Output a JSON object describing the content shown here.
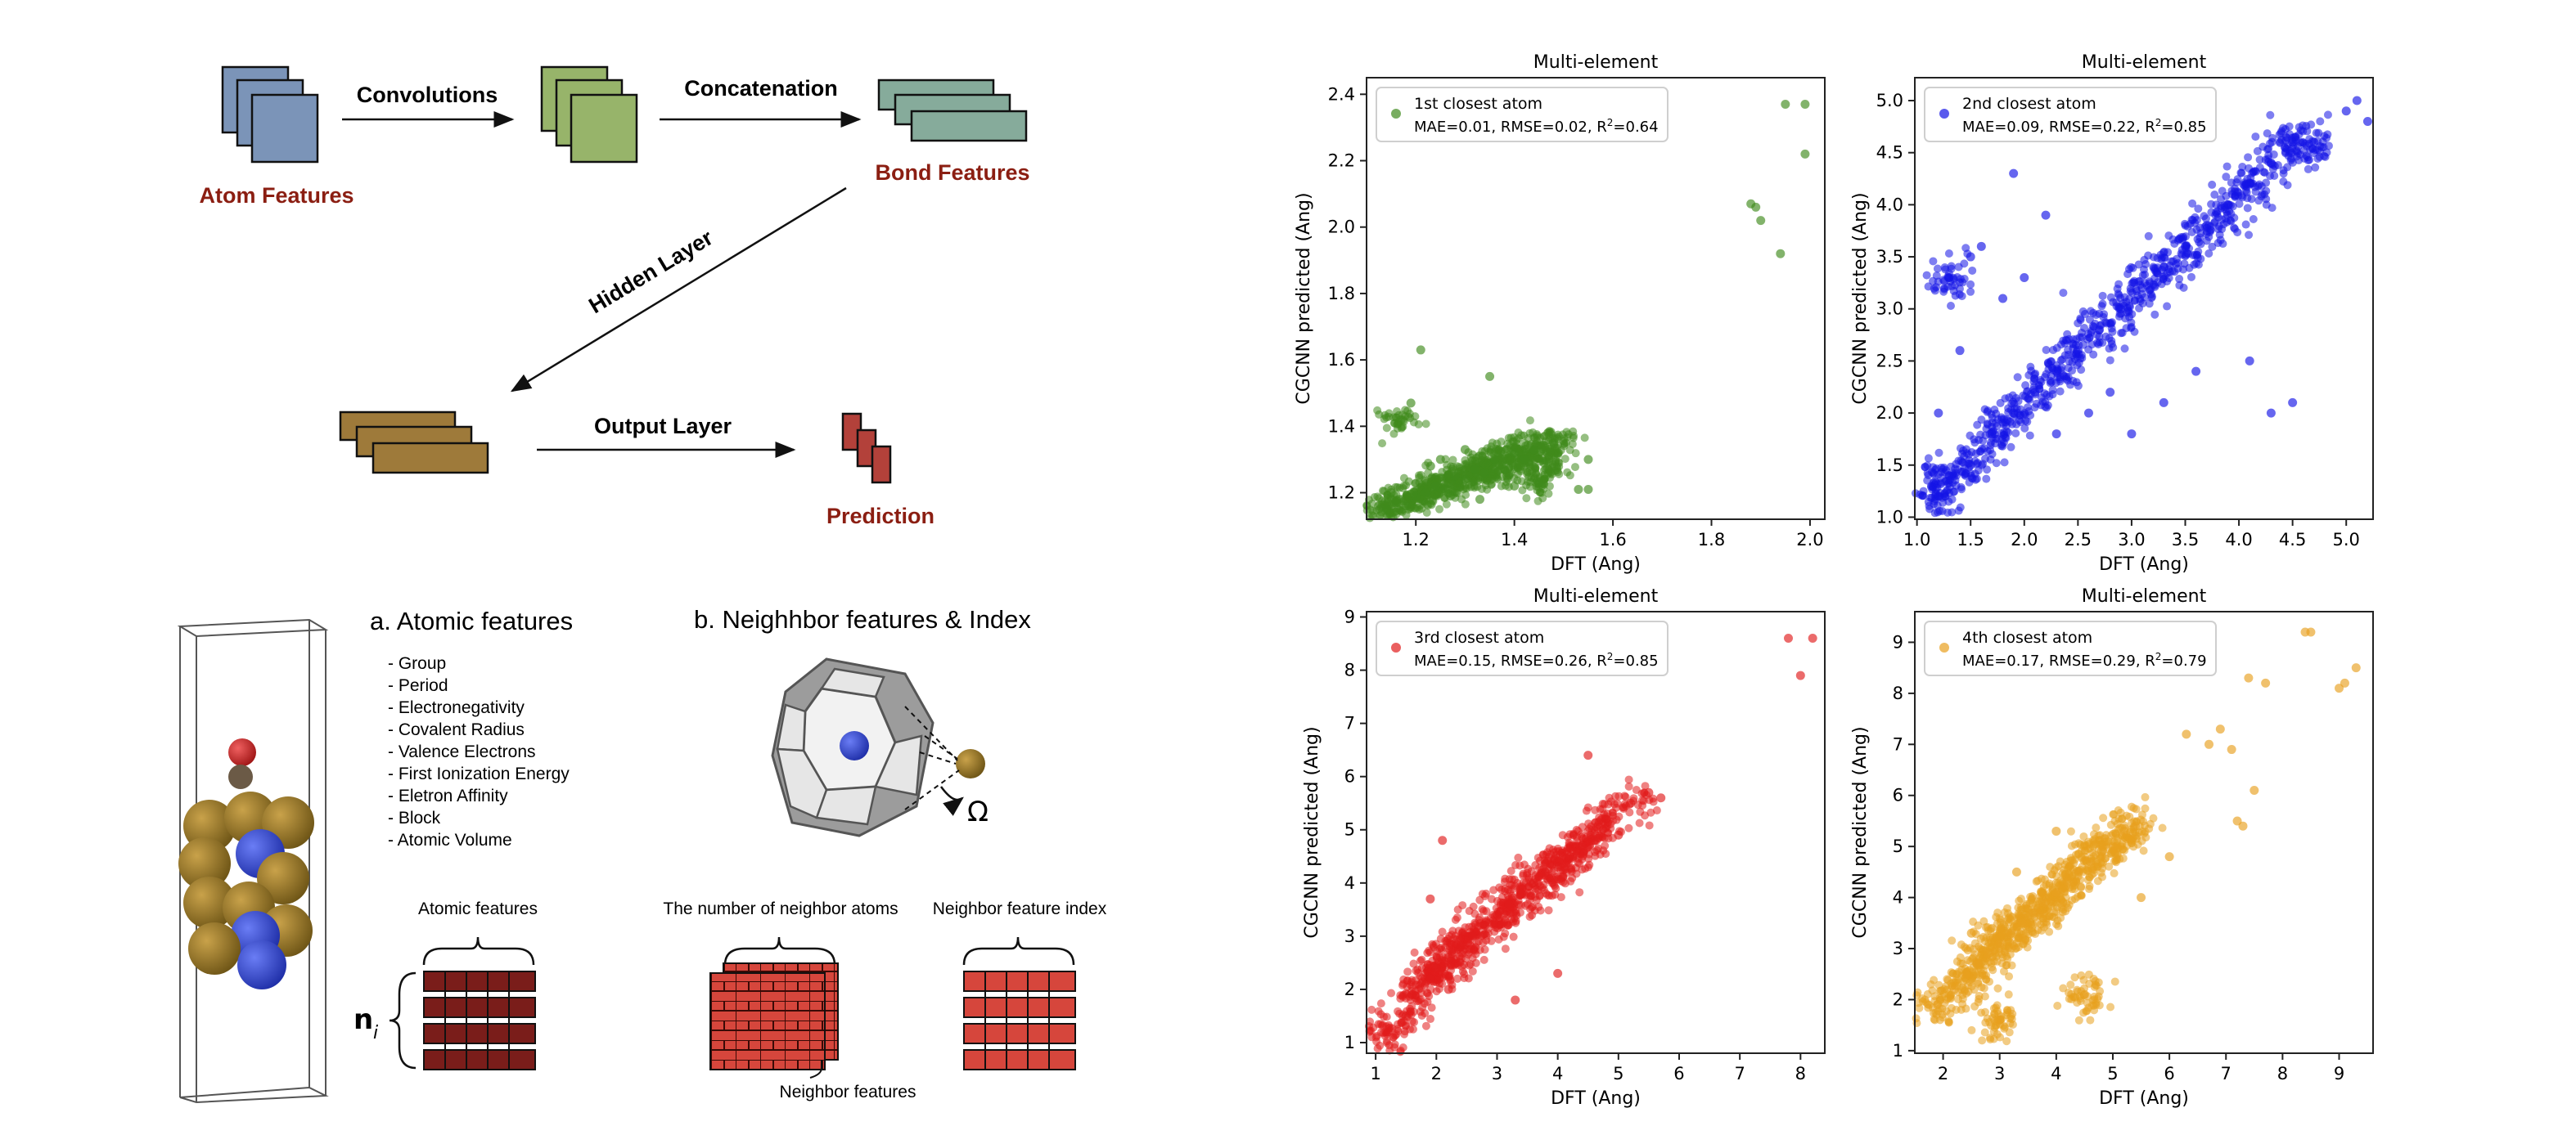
{
  "diagram": {
    "top_flow": {
      "convolutions": "Convolutions",
      "concatenation": "Concatenation",
      "atom_features": "Atom Features",
      "bond_features": "Bond Features",
      "hidden_layer": "Hidden Layer",
      "output_layer": "Output Layer",
      "prediction": "Prediction",
      "colors": {
        "atom_block": "#7b94b8",
        "conv_block": "#97b46a",
        "bond_block": "#86ab9b",
        "hidden_block": "#9e7a3a",
        "prediction_block": "#b3413a",
        "red_label": "#8b1e12"
      }
    },
    "atomic": {
      "heading": "a. Atomic features",
      "list": [
        "- Group",
        "- Period",
        "- Electronegativity",
        "- Covalent Radius",
        "- Valence Electrons",
        "- First Ionization Energy",
        "- Eletron Affinity",
        "- Block",
        "- Atomic Volume"
      ],
      "caption": "Atomic features",
      "symbol": "n",
      "symbol_sub": "i"
    },
    "neighbor": {
      "heading": "b. Neighhbor features & Index",
      "omega": "Ω",
      "count_caption": "The number of neighbor atoms",
      "index_caption": "Neighbor feature index",
      "features_caption": "Neighbor features"
    }
  },
  "chart_data": [
    {
      "type": "scatter",
      "title": "Multi-element",
      "xlabel": "DFT (Ang)",
      "ylabel": "CGCNN predicted (Ang)",
      "xlim": [
        1.1,
        2.03
      ],
      "ylim": [
        1.12,
        2.45
      ],
      "xticks": [
        1.2,
        1.4,
        1.6,
        1.8,
        2.0
      ],
      "xtick_labels": [
        "1.2",
        "1.4",
        "1.6",
        "1.8",
        "2.0"
      ],
      "yticks": [
        1.2,
        1.4,
        1.6,
        1.8,
        2.0,
        2.2,
        2.4
      ],
      "ytick_labels": [
        "1.2",
        "1.4",
        "1.6",
        "1.8",
        "2.0",
        "2.2",
        "2.4"
      ],
      "legend": {
        "name": "1st closest atom",
        "mae": "MAE=0.01, RMSE=0.02, R",
        "r2": "=0.64",
        "position": "top-left"
      },
      "color": "#3f8a1c",
      "series": {
        "name": "1st closest atom",
        "points": [
          [
            1.14,
            1.15
          ],
          [
            1.16,
            1.17
          ],
          [
            1.18,
            1.16
          ],
          [
            1.2,
            1.19
          ],
          [
            1.22,
            1.2
          ],
          [
            1.24,
            1.22
          ],
          [
            1.26,
            1.21
          ],
          [
            1.28,
            1.25
          ],
          [
            1.3,
            1.24
          ],
          [
            1.32,
            1.27
          ],
          [
            1.34,
            1.26
          ],
          [
            1.36,
            1.3
          ],
          [
            1.38,
            1.27
          ],
          [
            1.4,
            1.32
          ],
          [
            1.42,
            1.3
          ],
          [
            1.44,
            1.33
          ],
          [
            1.46,
            1.29
          ],
          [
            1.48,
            1.35
          ],
          [
            1.45,
            1.23
          ],
          [
            1.17,
            1.42
          ],
          [
            1.19,
            1.47
          ],
          [
            1.21,
            1.63
          ],
          [
            1.35,
            1.55
          ],
          [
            1.55,
            1.3
          ],
          [
            1.53,
            1.21
          ],
          [
            1.55,
            1.21
          ],
          [
            1.88,
            2.07
          ],
          [
            1.89,
            2.06
          ],
          [
            1.9,
            2.02
          ],
          [
            1.94,
            1.92
          ],
          [
            1.95,
            2.37
          ],
          [
            1.99,
            2.37
          ],
          [
            1.99,
            2.22
          ],
          [
            1.15,
            1.2
          ],
          [
            1.25,
            1.3
          ],
          [
            1.3,
            1.33
          ],
          [
            1.23,
            1.28
          ],
          [
            1.27,
            1.19
          ],
          [
            1.33,
            1.18
          ],
          [
            1.4,
            1.22
          ]
        ]
      }
    },
    {
      "type": "scatter",
      "title": "Multi-element",
      "xlabel": "DFT (Ang)",
      "ylabel": "CGCNN predicted (Ang)",
      "xlim": [
        0.98,
        5.25
      ],
      "ylim": [
        0.98,
        5.22
      ],
      "xticks": [
        1.0,
        1.5,
        2.0,
        2.5,
        3.0,
        3.5,
        4.0,
        4.5,
        5.0
      ],
      "xtick_labels": [
        "1.0",
        "1.5",
        "2.0",
        "2.5",
        "3.0",
        "3.5",
        "4.0",
        "4.5",
        "5.0"
      ],
      "yticks": [
        1.0,
        1.5,
        2.0,
        2.5,
        3.0,
        3.5,
        4.0,
        4.5,
        5.0
      ],
      "ytick_labels": [
        "1.0",
        "1.5",
        "2.0",
        "2.5",
        "3.0",
        "3.5",
        "4.0",
        "4.5",
        "5.0"
      ],
      "legend": {
        "name": "2nd closest atom",
        "mae": "MAE=0.09, RMSE=0.22, R",
        "r2": "=0.85",
        "position": "top-left"
      },
      "color": "#1414e6",
      "series": {
        "name": "2nd closest atom",
        "points": [
          [
            1.2,
            1.2
          ],
          [
            1.3,
            1.4
          ],
          [
            1.5,
            1.5
          ],
          [
            1.7,
            1.8
          ],
          [
            1.9,
            2.0
          ],
          [
            2.1,
            2.2
          ],
          [
            2.3,
            2.4
          ],
          [
            2.5,
            2.6
          ],
          [
            2.7,
            2.8
          ],
          [
            2.9,
            3.0
          ],
          [
            3.1,
            3.2
          ],
          [
            3.3,
            3.4
          ],
          [
            3.5,
            3.6
          ],
          [
            3.7,
            3.8
          ],
          [
            3.9,
            4.0
          ],
          [
            4.1,
            4.2
          ],
          [
            4.3,
            4.4
          ],
          [
            4.5,
            4.6
          ],
          [
            4.7,
            4.6
          ],
          [
            1.3,
            3.3
          ],
          [
            1.5,
            3.5
          ],
          [
            1.9,
            4.3
          ],
          [
            1.6,
            3.6
          ],
          [
            2.2,
            3.9
          ],
          [
            1.2,
            2.0
          ],
          [
            1.4,
            2.6
          ],
          [
            1.8,
            3.1
          ],
          [
            2.0,
            3.3
          ],
          [
            3.0,
            1.8
          ],
          [
            3.3,
            2.1
          ],
          [
            3.6,
            2.4
          ],
          [
            4.1,
            2.5
          ],
          [
            4.3,
            2.0
          ],
          [
            4.5,
            2.1
          ],
          [
            5.0,
            4.9
          ],
          [
            5.1,
            5.0
          ],
          [
            5.2,
            4.8
          ],
          [
            2.3,
            1.8
          ],
          [
            2.6,
            2.0
          ],
          [
            2.8,
            2.2
          ]
        ]
      }
    },
    {
      "type": "scatter",
      "title": "Multi-element",
      "xlabel": "DFT (Ang)",
      "ylabel": "CGCNN predicted (Ang)",
      "xlim": [
        0.85,
        8.4
      ],
      "ylim": [
        0.8,
        9.1
      ],
      "xticks": [
        1,
        2,
        3,
        4,
        5,
        6,
        7,
        8
      ],
      "xtick_labels": [
        "1",
        "2",
        "3",
        "4",
        "5",
        "6",
        "7",
        "8"
      ],
      "yticks": [
        1,
        2,
        3,
        4,
        5,
        6,
        7,
        8,
        9
      ],
      "ytick_labels": [
        "1",
        "2",
        "3",
        "4",
        "5",
        "6",
        "7",
        "8",
        "9"
      ],
      "legend": {
        "name": "3rd closest atom",
        "mae": "MAE=0.15, RMSE=0.26, R",
        "r2": "=0.85",
        "position": "top-left"
      },
      "color": "#e11b1b",
      "series": {
        "name": "3rd closest atom",
        "points": [
          [
            1.2,
            1.2
          ],
          [
            1.5,
            1.5
          ],
          [
            1.6,
            1.9
          ],
          [
            1.9,
            2.2
          ],
          [
            2.0,
            2.4
          ],
          [
            2.2,
            2.6
          ],
          [
            2.4,
            2.8
          ],
          [
            2.6,
            3.0
          ],
          [
            2.8,
            3.2
          ],
          [
            3.0,
            3.4
          ],
          [
            3.2,
            3.6
          ],
          [
            3.4,
            3.8
          ],
          [
            3.6,
            4.0
          ],
          [
            3.8,
            4.2
          ],
          [
            4.0,
            4.3
          ],
          [
            4.2,
            4.5
          ],
          [
            4.4,
            4.7
          ],
          [
            4.6,
            4.8
          ],
          [
            4.8,
            5.2
          ],
          [
            5.2,
            5.5
          ],
          [
            5.5,
            5.7
          ],
          [
            5.7,
            5.6
          ],
          [
            4.5,
            6.4
          ],
          [
            2.1,
            4.8
          ],
          [
            1.9,
            3.7
          ],
          [
            2.2,
            2.0
          ],
          [
            3.3,
            1.8
          ],
          [
            4.0,
            2.3
          ],
          [
            5.0,
            4.9
          ],
          [
            7.8,
            8.6
          ],
          [
            8.0,
            7.9
          ],
          [
            8.2,
            8.6
          ]
        ]
      }
    },
    {
      "type": "scatter",
      "title": "Multi-element",
      "xlabel": "DFT (Ang)",
      "ylabel": "CGCNN predicted (Ang)",
      "xlim": [
        1.5,
        9.6
      ],
      "ylim": [
        0.95,
        9.6
      ],
      "xticks": [
        2,
        3,
        4,
        5,
        6,
        7,
        8,
        9
      ],
      "xtick_labels": [
        "2",
        "3",
        "4",
        "5",
        "6",
        "7",
        "8",
        "9"
      ],
      "yticks": [
        1,
        2,
        3,
        4,
        5,
        6,
        7,
        8,
        9
      ],
      "ytick_labels": [
        "1",
        "2",
        "3",
        "4",
        "5",
        "6",
        "7",
        "8",
        "9"
      ],
      "legend": {
        "name": "4th closest atom",
        "mae": "MAE=0.17, RMSE=0.29, R",
        "r2": "=0.79",
        "position": "top-left"
      },
      "color": "#e8a01e",
      "series": {
        "name": "4th closest atom",
        "points": [
          [
            1.9,
            1.9
          ],
          [
            2.2,
            2.2
          ],
          [
            2.4,
            2.5
          ],
          [
            2.6,
            2.7
          ],
          [
            2.8,
            2.9
          ],
          [
            3.0,
            3.1
          ],
          [
            3.2,
            3.3
          ],
          [
            3.4,
            3.5
          ],
          [
            3.6,
            3.7
          ],
          [
            3.8,
            3.9
          ],
          [
            4.0,
            4.1
          ],
          [
            4.2,
            4.3
          ],
          [
            4.4,
            4.5
          ],
          [
            4.6,
            4.7
          ],
          [
            4.8,
            4.9
          ],
          [
            5.0,
            5.0
          ],
          [
            5.2,
            5.3
          ],
          [
            5.4,
            5.4
          ],
          [
            3.0,
            1.6
          ],
          [
            4.5,
            2.1
          ],
          [
            4.0,
            5.3
          ],
          [
            3.3,
            4.5
          ],
          [
            2.5,
            3.3
          ],
          [
            5.5,
            4.0
          ],
          [
            6.0,
            4.8
          ],
          [
            6.3,
            7.2
          ],
          [
            6.7,
            7.0
          ],
          [
            6.9,
            7.3
          ],
          [
            7.1,
            6.9
          ],
          [
            7.2,
            5.5
          ],
          [
            7.3,
            5.4
          ],
          [
            7.5,
            6.1
          ],
          [
            7.7,
            8.2
          ],
          [
            7.4,
            8.3
          ],
          [
            8.4,
            9.2
          ],
          [
            8.5,
            9.2
          ],
          [
            9.0,
            8.1
          ],
          [
            9.1,
            8.2
          ],
          [
            9.3,
            8.5
          ]
        ]
      }
    }
  ]
}
